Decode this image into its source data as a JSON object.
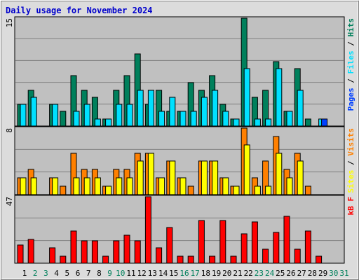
{
  "chart_data": {
    "type": "bar",
    "title": "Daily usage for November 2024",
    "days": [
      "1",
      "2",
      "3",
      "4",
      "5",
      "6",
      "7",
      "8",
      "9",
      "10",
      "11",
      "12",
      "13",
      "14",
      "15",
      "16",
      "17",
      "18",
      "19",
      "20",
      "21",
      "22",
      "23",
      "24",
      "25",
      "26",
      "27",
      "28",
      "29",
      "30",
      "31"
    ],
    "weekend_days": [
      "2",
      "3",
      "9",
      "10",
      "16",
      "17",
      "23",
      "24",
      "30",
      "31"
    ],
    "panels": [
      {
        "name": "hits-files-pages",
        "max_label": "15",
        "ymax": 15,
        "legend": [
          "Pages",
          "Files",
          "Hits"
        ],
        "series": [
          {
            "name": "Hits",
            "values": [
              3,
              5,
              0,
              3,
              2,
              7,
              5,
              4,
              1,
              5,
              7,
              10,
              3,
              5,
              2,
              2,
              6,
              5,
              7,
              3,
              1,
              15,
              4,
              5,
              9,
              2,
              8,
              1,
              0,
              0,
              0
            ]
          },
          {
            "name": "Files",
            "values": [
              3,
              4,
              0,
              3,
              0,
              2,
              3,
              1,
              1,
              3,
              3,
              5,
              5,
              2,
              4,
              2,
              2,
              4,
              5,
              2,
              1,
              8,
              1,
              1,
              8,
              2,
              5,
              0,
              1,
              0,
              0
            ]
          },
          {
            "name": "Pages",
            "values": [
              0,
              0,
              0,
              0,
              0,
              0,
              0,
              0,
              0,
              0,
              0,
              0,
              0,
              0,
              0,
              0,
              0,
              0,
              0,
              0,
              0,
              0,
              0,
              0,
              0,
              0,
              0,
              0,
              1,
              0,
              0
            ]
          }
        ]
      },
      {
        "name": "visits-sites",
        "max_label": "8",
        "ymax": 8,
        "legend": [
          "Sites",
          "Visits"
        ],
        "series": [
          {
            "name": "Visits",
            "values": [
              2,
              3,
              0,
              2,
              1,
              5,
              3,
              3,
              1,
              3,
              3,
              5,
              5,
              2,
              4,
              2,
              1,
              4,
              4,
              2,
              1,
              8,
              2,
              4,
              7,
              3,
              5,
              1,
              0,
              0,
              0
            ]
          },
          {
            "name": "Sites",
            "values": [
              2,
              2,
              0,
              2,
              0,
              2,
              2,
              2,
              1,
              2,
              2,
              4,
              5,
              2,
              4,
              2,
              0,
              4,
              4,
              2,
              1,
              6,
              1,
              1,
              5,
              2,
              4,
              0,
              0,
              0,
              0
            ]
          }
        ]
      },
      {
        "name": "kbytes",
        "max_label": "47",
        "ymax": 47,
        "legend": [
          "kB F"
        ],
        "series": [
          {
            "name": "kB F",
            "values": [
              13,
              17,
              0,
              11,
              5,
              23,
              16,
              16,
              5,
              16,
              20,
              16,
              47,
              11,
              25,
              5,
              5,
              30,
              5,
              30,
              5,
              21,
              29,
              10,
              22,
              33,
              10,
              23,
              5,
              0,
              0
            ]
          }
        ]
      }
    ],
    "colors": {
      "hits": "#00805c",
      "files": "#00e0ff",
      "pages": "#0040ff",
      "visits": "#ff8000",
      "sites": "#ffff00",
      "kbytes": "#ff0000",
      "title": "#0000ff",
      "weekday_label": "#000000",
      "weekend_label": "#00805c",
      "panel_bg": "#c0c0c0",
      "frame_bg": "#e0e0e0"
    }
  }
}
